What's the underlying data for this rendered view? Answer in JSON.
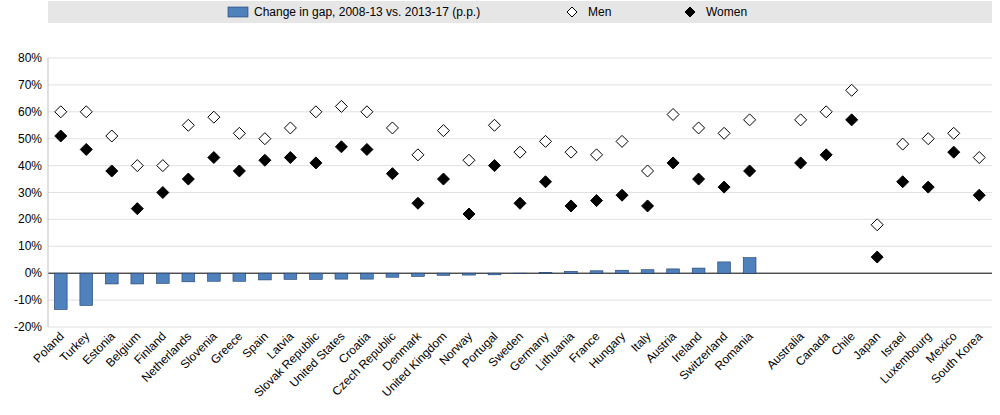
{
  "chart_data": {
    "type": "bar",
    "categories": [
      "Poland",
      "Turkey",
      "Estonia",
      "Belgium",
      "Finland",
      "Netherlands",
      "Slovenia",
      "Greece",
      "Spain",
      "Latvia",
      "Slovak Republic",
      "United States",
      "Croatia",
      "Czech Republic",
      "Denmark",
      "United Kingdom",
      "Norway",
      "Portugal",
      "Sweden",
      "Germany",
      "Lithuania",
      "France",
      "Hungary",
      "Italy",
      "Austria",
      "Ireland",
      "Switzerland",
      "Romania",
      null,
      "Australia",
      "Canada",
      "Chile",
      "Japan",
      "Israel",
      "Luxembourg",
      "Mexico",
      "South Korea"
    ],
    "series": [
      {
        "name": "Change in gap, 2008-13 vs. 2013-17 (p.p.)",
        "type": "bar",
        "color": "#4f81bd",
        "values": [
          -13.5,
          -12,
          -4,
          -4,
          -3.8,
          -3.2,
          -3,
          -3,
          -2.5,
          -2.3,
          -2.3,
          -2.2,
          -2.2,
          -1.5,
          -1.2,
          -0.8,
          -0.7,
          -0.6,
          -0.1,
          0.3,
          0.7,
          0.9,
          1.1,
          1.3,
          1.6,
          1.9,
          4.2,
          5.8,
          null,
          null,
          null,
          null,
          null,
          null,
          null,
          null,
          null
        ]
      },
      {
        "name": "Men",
        "type": "scatter",
        "marker": "diamond",
        "color": "#ffffff",
        "values": [
          60,
          60,
          51,
          40,
          40,
          55,
          58,
          52,
          50,
          54,
          60,
          62,
          60,
          54,
          44,
          53,
          42,
          55,
          45,
          49,
          45,
          44,
          49,
          38,
          59,
          54,
          52,
          57,
          null,
          57,
          60,
          68,
          18,
          48,
          50,
          52,
          43
        ]
      },
      {
        "name": "Women",
        "type": "scatter",
        "marker": "diamond",
        "color": "#000000",
        "values": [
          51,
          46,
          38,
          24,
          30,
          35,
          43,
          38,
          42,
          43,
          41,
          47,
          46,
          37,
          26,
          35,
          22,
          40,
          26,
          34,
          25,
          27,
          29,
          25,
          41,
          35,
          32,
          38,
          null,
          41,
          44,
          57,
          6,
          34,
          32,
          45,
          29
        ]
      }
    ],
    "ylim": [
      -20,
      80
    ],
    "yticks": [
      {
        "value": -20,
        "label": "-20%"
      },
      {
        "value": -10,
        "label": "-10%"
      },
      {
        "value": 0,
        "label": "0%"
      },
      {
        "value": 10,
        "label": "10%"
      },
      {
        "value": 20,
        "label": "20%"
      },
      {
        "value": 30,
        "label": "30%"
      },
      {
        "value": 40,
        "label": "40%"
      },
      {
        "value": 50,
        "label": "50%"
      },
      {
        "value": 60,
        "label": "60%"
      },
      {
        "value": 70,
        "label": "70%"
      },
      {
        "value": 80,
        "label": "80%"
      }
    ],
    "grid": true,
    "legend": "top"
  }
}
